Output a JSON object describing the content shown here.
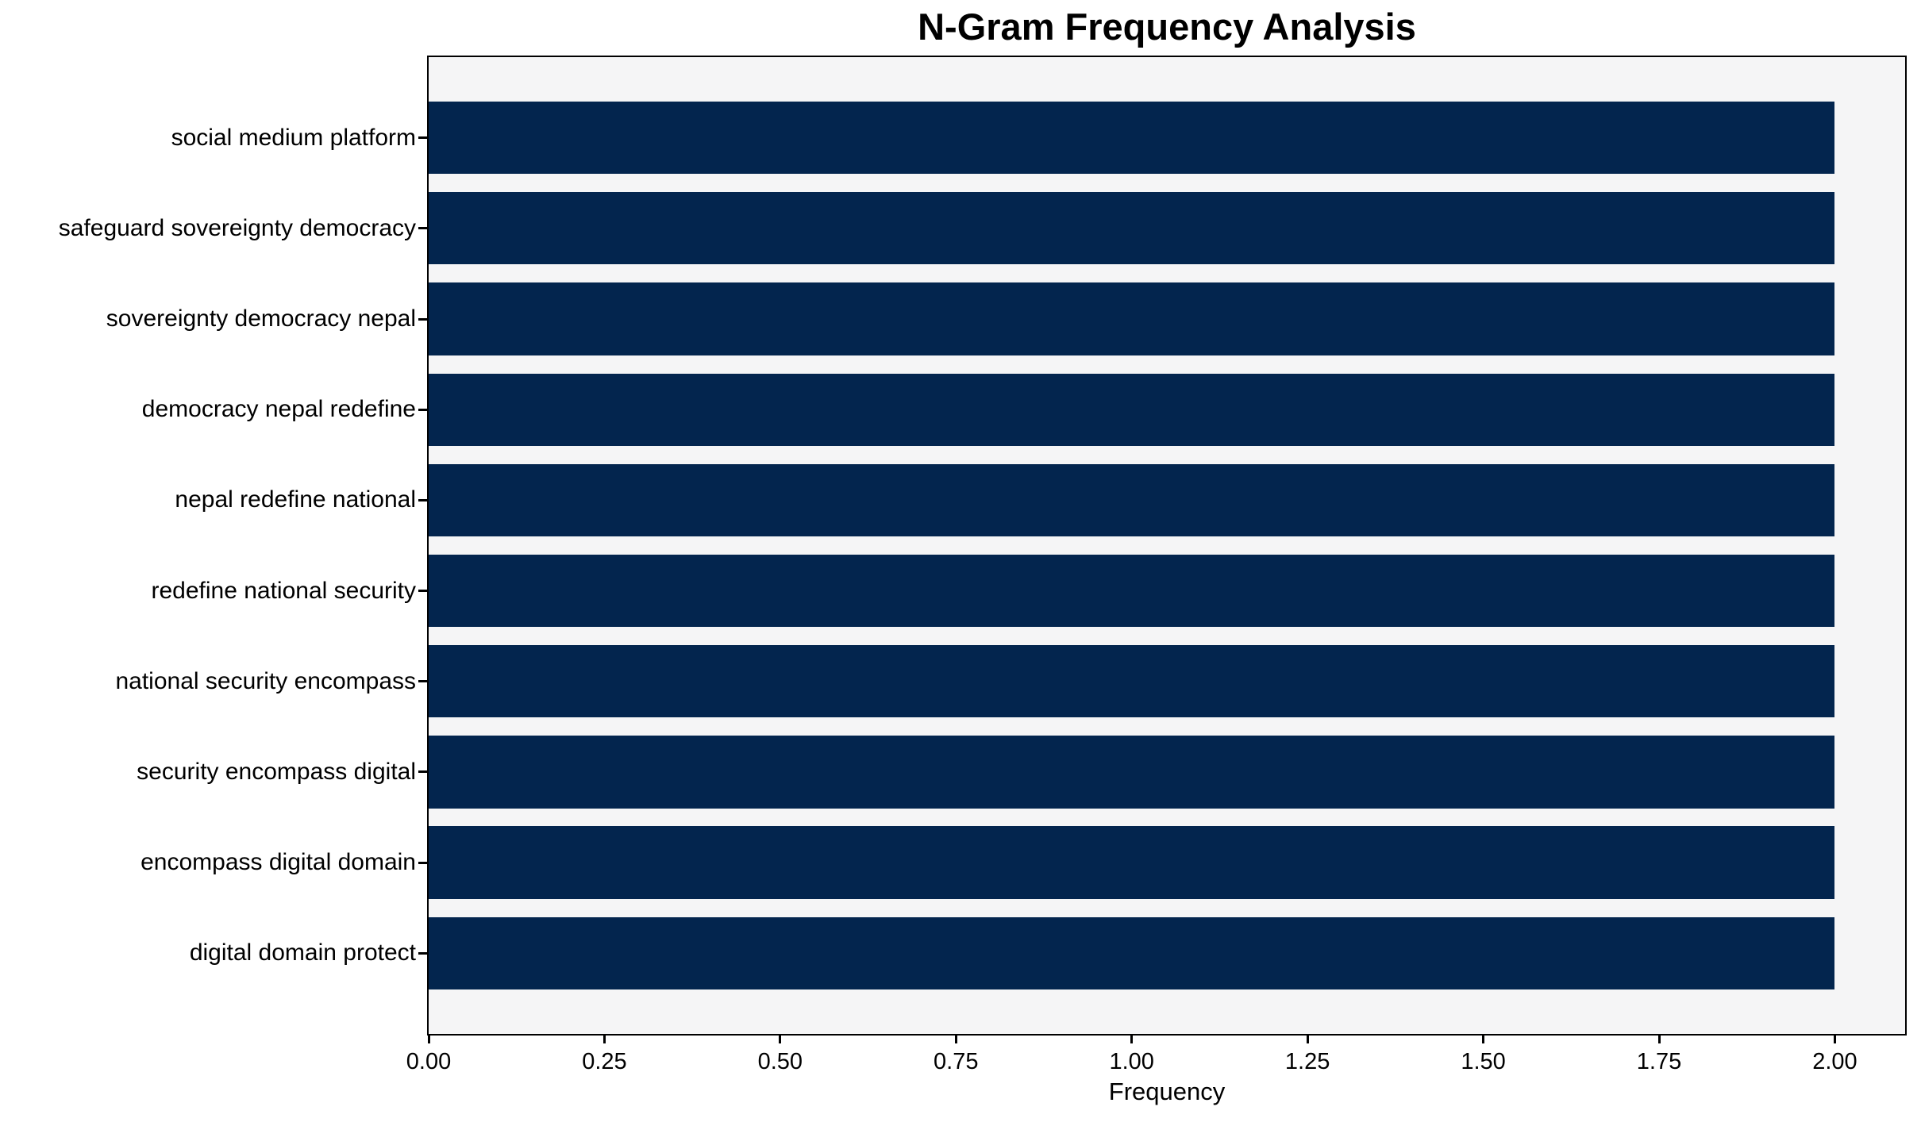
{
  "chart_data": {
    "type": "bar",
    "orientation": "horizontal",
    "title": "N-Gram Frequency Analysis",
    "xlabel": "Frequency",
    "ylabel": "",
    "categories": [
      "social medium platform",
      "safeguard sovereignty democracy",
      "sovereignty democracy nepal",
      "democracy nepal redefine",
      "nepal redefine national",
      "redefine national security",
      "national security encompass",
      "security encompass digital",
      "encompass digital domain",
      "digital domain protect"
    ],
    "values": [
      2.0,
      2.0,
      2.0,
      2.0,
      2.0,
      2.0,
      2.0,
      2.0,
      2.0,
      2.0
    ],
    "xlim": [
      0,
      2.1
    ],
    "xtick_values": [
      0.0,
      0.25,
      0.5,
      0.75,
      1.0,
      1.25,
      1.5,
      1.75,
      2.0
    ],
    "xtick_labels": [
      "0.00",
      "0.25",
      "0.50",
      "0.75",
      "1.00",
      "1.25",
      "1.50",
      "1.75",
      "2.00"
    ],
    "bar_color": "#03254e",
    "plot_background": "#f5f5f6",
    "figure_background": "#ffffff",
    "spine_color": "#000000",
    "text_color": "#000000",
    "grid": false,
    "legend": false,
    "bar_height_fraction": 0.8
  }
}
